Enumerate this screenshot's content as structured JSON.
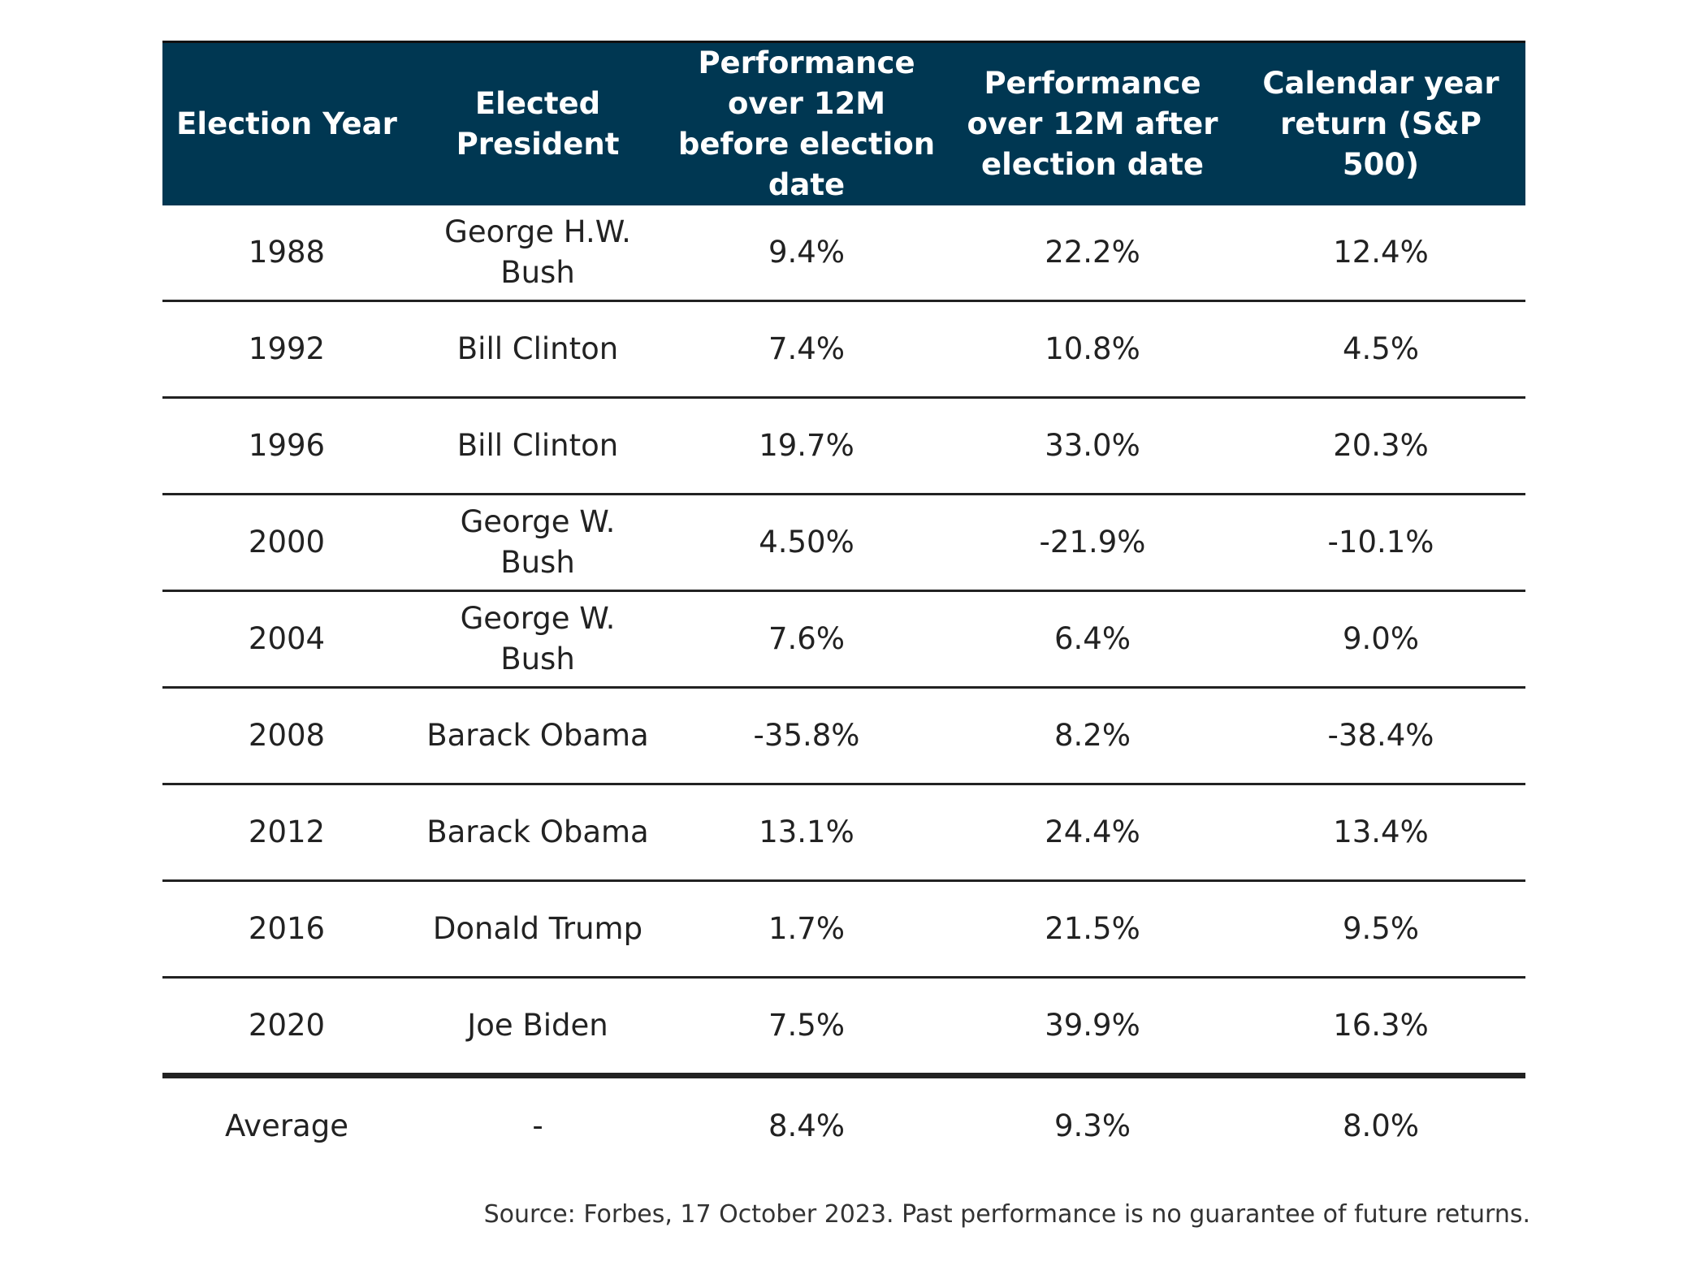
{
  "chart_data": {
    "type": "table",
    "columns": [
      "Election Year",
      "Elected President",
      "Performance over 12M before election date",
      "Performance over 12M after election date",
      "Calendar year return (S&P 500)"
    ],
    "rows": [
      [
        "1988",
        "George H.W. Bush",
        "9.4%",
        "22.2%",
        "12.4%"
      ],
      [
        "1992",
        "Bill Clinton",
        "7.4%",
        "10.8%",
        "4.5%"
      ],
      [
        "1996",
        "Bill Clinton",
        "19.7%",
        "33.0%",
        "20.3%"
      ],
      [
        "2000",
        "George W. Bush",
        "4.50%",
        "-21.9%",
        "-10.1%"
      ],
      [
        "2004",
        "George W. Bush",
        "7.6%",
        "6.4%",
        "9.0%"
      ],
      [
        "2008",
        "Barack Obama",
        "-35.8%",
        "8.2%",
        "-38.4%"
      ],
      [
        "2012",
        "Barack Obama",
        "13.1%",
        "24.4%",
        "13.4%"
      ],
      [
        "2016",
        "Donald Trump",
        "1.7%",
        "21.5%",
        "9.5%"
      ],
      [
        "2020",
        "Joe Biden",
        "7.5%",
        "39.9%",
        "16.3%"
      ]
    ],
    "summary_row": [
      "Average",
      "-",
      "8.4%",
      "9.3%",
      "8.0%"
    ]
  },
  "source_note": "Source: Forbes, 17 October 2023. Past performance is no guarantee of future returns.",
  "colors": {
    "header_background": "#003752",
    "header_text": "#ffffff",
    "body_text": "#222222",
    "rule": "#222222"
  }
}
